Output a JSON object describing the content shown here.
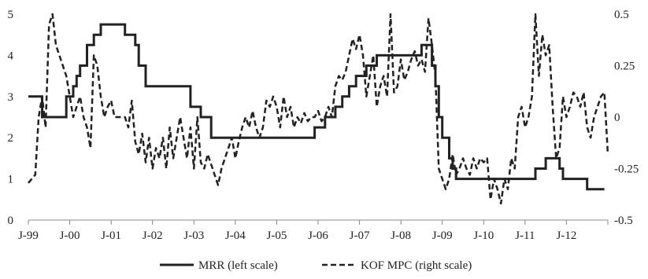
{
  "chart_data": {
    "type": "line",
    "title": "",
    "xlabel": "",
    "ylabel": "",
    "grid": false,
    "legend_position": "bottom",
    "x_range": [
      "1999-01",
      "2013-01"
    ],
    "x_tick_labels": [
      "J-99",
      "J-00",
      "J-01",
      "J-02",
      "J-03",
      "J-04",
      "J-05",
      "J-06",
      "J-07",
      "J-08",
      "J-09",
      "J-10",
      "J-11",
      "J-12"
    ],
    "left_axis": {
      "ylim": [
        0,
        5
      ],
      "ticks": [
        "0",
        "1",
        "2",
        "3",
        "4",
        "5"
      ]
    },
    "right_axis": {
      "ylim": [
        -0.5,
        0.5
      ],
      "ticks": [
        "-0.5",
        "-0.25",
        "0",
        "0.25",
        "0.5"
      ]
    },
    "colors": {
      "series": "#222222",
      "axis": "#888888"
    },
    "series": [
      {
        "name": "MRR (left scale)",
        "axis": "left",
        "style": "solid",
        "points": [
          [
            "1999-01",
            3.0
          ],
          [
            "1999-04",
            3.0
          ],
          [
            "1999-05",
            2.5
          ],
          [
            "1999-11",
            2.5
          ],
          [
            "1999-12",
            3.0
          ],
          [
            "2000-02",
            3.25
          ],
          [
            "2000-03",
            3.5
          ],
          [
            "2000-04",
            3.75
          ],
          [
            "2000-06",
            4.25
          ],
          [
            "2000-07",
            4.25
          ],
          [
            "2000-08",
            4.5
          ],
          [
            "2000-10",
            4.75
          ],
          [
            "2001-05",
            4.5
          ],
          [
            "2001-08",
            4.25
          ],
          [
            "2001-09",
            3.75
          ],
          [
            "2001-11",
            3.25
          ],
          [
            "2002-12",
            2.75
          ],
          [
            "2003-03",
            2.5
          ],
          [
            "2003-06",
            2.0
          ],
          [
            "2005-12",
            2.25
          ],
          [
            "2006-03",
            2.5
          ],
          [
            "2006-06",
            2.75
          ],
          [
            "2006-08",
            3.0
          ],
          [
            "2006-10",
            3.25
          ],
          [
            "2006-12",
            3.5
          ],
          [
            "2007-03",
            3.75
          ],
          [
            "2007-06",
            4.0
          ],
          [
            "2008-07",
            4.25
          ],
          [
            "2008-10",
            3.75
          ],
          [
            "2008-11",
            3.25
          ],
          [
            "2008-12",
            2.5
          ],
          [
            "2009-01",
            2.0
          ],
          [
            "2009-03",
            1.5
          ],
          [
            "2009-04",
            1.25
          ],
          [
            "2009-05",
            1.0
          ],
          [
            "2011-04",
            1.25
          ],
          [
            "2011-07",
            1.5
          ],
          [
            "2011-11",
            1.25
          ],
          [
            "2011-12",
            1.0
          ],
          [
            "2012-07",
            0.75
          ],
          [
            "2012-12",
            0.75
          ]
        ]
      },
      {
        "name": "KOF MPC (right scale)",
        "axis": "right",
        "style": "dashed",
        "points": [
          [
            "1999-01",
            -0.32
          ],
          [
            "1999-03",
            -0.28
          ],
          [
            "1999-04",
            0.0
          ],
          [
            "1999-05",
            0.1
          ],
          [
            "1999-06",
            -0.05
          ],
          [
            "1999-07",
            0.45
          ],
          [
            "1999-08",
            0.5
          ],
          [
            "1999-09",
            0.35
          ],
          [
            "1999-10",
            0.3
          ],
          [
            "1999-11",
            0.25
          ],
          [
            "1999-12",
            0.2
          ],
          [
            "2000-01",
            0.1
          ],
          [
            "2000-02",
            0.0
          ],
          [
            "2000-03",
            0.05
          ],
          [
            "2000-04",
            0.1
          ],
          [
            "2000-05",
            0.0
          ],
          [
            "2000-06",
            -0.05
          ],
          [
            "2000-07",
            -0.15
          ],
          [
            "2000-08",
            0.3
          ],
          [
            "2000-09",
            0.25
          ],
          [
            "2000-10",
            0.1
          ],
          [
            "2000-11",
            0.0
          ],
          [
            "2000-12",
            0.05
          ],
          [
            "2001-01",
            0.08
          ],
          [
            "2001-02",
            0.0
          ],
          [
            "2001-05",
            0.0
          ],
          [
            "2001-06",
            -0.05
          ],
          [
            "2001-07",
            0.08
          ],
          [
            "2001-08",
            -0.12
          ],
          [
            "2001-09",
            -0.18
          ],
          [
            "2001-10",
            -0.08
          ],
          [
            "2001-11",
            -0.22
          ],
          [
            "2001-12",
            -0.1
          ],
          [
            "2002-01",
            -0.25
          ],
          [
            "2002-02",
            -0.15
          ],
          [
            "2002-03",
            -0.2
          ],
          [
            "2002-04",
            -0.1
          ],
          [
            "2002-05",
            -0.25
          ],
          [
            "2002-06",
            -0.05
          ],
          [
            "2002-07",
            -0.2
          ],
          [
            "2002-08",
            -0.1
          ],
          [
            "2002-09",
            0.0
          ],
          [
            "2002-10",
            -0.1
          ],
          [
            "2002-11",
            -0.2
          ],
          [
            "2002-12",
            -0.05
          ],
          [
            "2003-01",
            -0.25
          ],
          [
            "2003-02",
            0.0
          ],
          [
            "2003-03",
            -0.22
          ],
          [
            "2003-04",
            -0.25
          ],
          [
            "2003-05",
            -0.18
          ],
          [
            "2003-07",
            -0.28
          ],
          [
            "2003-08",
            -0.33
          ],
          [
            "2003-09",
            -0.25
          ],
          [
            "2003-10",
            -0.2
          ],
          [
            "2003-11",
            -0.15
          ],
          [
            "2003-12",
            -0.1
          ],
          [
            "2004-01",
            -0.2
          ],
          [
            "2004-02",
            -0.12
          ],
          [
            "2004-03",
            -0.05
          ],
          [
            "2004-04",
            0.0
          ],
          [
            "2004-05",
            -0.05
          ],
          [
            "2004-06",
            0.03
          ],
          [
            "2004-07",
            -0.05
          ],
          [
            "2004-08",
            -0.1
          ],
          [
            "2004-09",
            -0.05
          ],
          [
            "2004-10",
            0.08
          ],
          [
            "2004-11",
            0.05
          ],
          [
            "2004-12",
            0.1
          ],
          [
            "2005-01",
            0.05
          ],
          [
            "2005-02",
            -0.05
          ],
          [
            "2005-03",
            0.1
          ],
          [
            "2005-04",
            0.0
          ],
          [
            "2005-05",
            0.05
          ],
          [
            "2005-06",
            -0.05
          ],
          [
            "2005-07",
            0.0
          ],
          [
            "2005-08",
            -0.03
          ],
          [
            "2005-09",
            0.02
          ],
          [
            "2005-10",
            -0.02
          ],
          [
            "2005-11",
            0.0
          ],
          [
            "2005-12",
            0.0
          ],
          [
            "2006-01",
            0.03
          ],
          [
            "2006-02",
            -0.02
          ],
          [
            "2006-03",
            0.0
          ],
          [
            "2006-04",
            0.05
          ],
          [
            "2006-05",
            0.0
          ],
          [
            "2006-06",
            0.15
          ],
          [
            "2006-07",
            0.2
          ],
          [
            "2006-08",
            0.18
          ],
          [
            "2006-09",
            0.22
          ],
          [
            "2006-10",
            0.3
          ],
          [
            "2006-11",
            0.38
          ],
          [
            "2006-12",
            0.33
          ],
          [
            "2007-01",
            0.4
          ],
          [
            "2007-02",
            0.3
          ],
          [
            "2007-03",
            0.1
          ],
          [
            "2007-04",
            0.2
          ],
          [
            "2007-05",
            0.3
          ],
          [
            "2007-06",
            0.05
          ],
          [
            "2007-07",
            0.15
          ],
          [
            "2007-08",
            0.2
          ],
          [
            "2007-09",
            0.1
          ],
          [
            "2007-10",
            0.5
          ],
          [
            "2007-11",
            0.12
          ],
          [
            "2007-12",
            0.15
          ],
          [
            "2008-01",
            0.28
          ],
          [
            "2008-02",
            0.18
          ],
          [
            "2008-03",
            0.22
          ],
          [
            "2008-04",
            0.28
          ],
          [
            "2008-05",
            0.32
          ],
          [
            "2008-06",
            0.25
          ],
          [
            "2008-07",
            0.28
          ],
          [
            "2008-08",
            0.22
          ],
          [
            "2008-09",
            0.48
          ],
          [
            "2008-10",
            0.35
          ],
          [
            "2008-11",
            0.2
          ],
          [
            "2008-12",
            -0.25
          ],
          [
            "2009-01",
            -0.3
          ],
          [
            "2009-02",
            -0.35
          ],
          [
            "2009-03",
            -0.3
          ],
          [
            "2009-04",
            -0.18
          ],
          [
            "2009-05",
            -0.28
          ],
          [
            "2009-06",
            -0.25
          ],
          [
            "2009-07",
            -0.2
          ],
          [
            "2009-08",
            -0.25
          ],
          [
            "2009-09",
            -0.28
          ],
          [
            "2009-10",
            -0.2
          ],
          [
            "2009-11",
            -0.25
          ],
          [
            "2009-12",
            -0.2
          ],
          [
            "2010-01",
            -0.22
          ],
          [
            "2010-02",
            -0.2
          ],
          [
            "2010-03",
            -0.4
          ],
          [
            "2010-04",
            -0.3
          ],
          [
            "2010-05",
            -0.35
          ],
          [
            "2010-06",
            -0.42
          ],
          [
            "2010-07",
            -0.3
          ],
          [
            "2010-08",
            -0.35
          ],
          [
            "2010-09",
            -0.2
          ],
          [
            "2010-10",
            -0.25
          ],
          [
            "2010-11",
            0.0
          ],
          [
            "2010-12",
            0.05
          ],
          [
            "2011-01",
            -0.05
          ],
          [
            "2011-02",
            0.0
          ],
          [
            "2011-03",
            0.1
          ],
          [
            "2011-04",
            0.5
          ],
          [
            "2011-05",
            0.2
          ],
          [
            "2011-06",
            0.4
          ],
          [
            "2011-07",
            0.3
          ],
          [
            "2011-08",
            0.35
          ],
          [
            "2011-09",
            0.05
          ],
          [
            "2011-10",
            -0.2
          ],
          [
            "2011-11",
            -0.15
          ],
          [
            "2011-12",
            0.1
          ],
          [
            "2012-01",
            0.0
          ],
          [
            "2012-02",
            0.05
          ],
          [
            "2012-03",
            0.12
          ],
          [
            "2012-04",
            0.1
          ],
          [
            "2012-05",
            0.05
          ],
          [
            "2012-06",
            0.12
          ],
          [
            "2012-07",
            -0.05
          ],
          [
            "2012-08",
            -0.1
          ],
          [
            "2012-09",
            0.0
          ],
          [
            "2012-10",
            0.05
          ],
          [
            "2012-11",
            0.1
          ],
          [
            "2012-12",
            0.12
          ],
          [
            "2013-01",
            -0.18
          ]
        ]
      }
    ]
  }
}
